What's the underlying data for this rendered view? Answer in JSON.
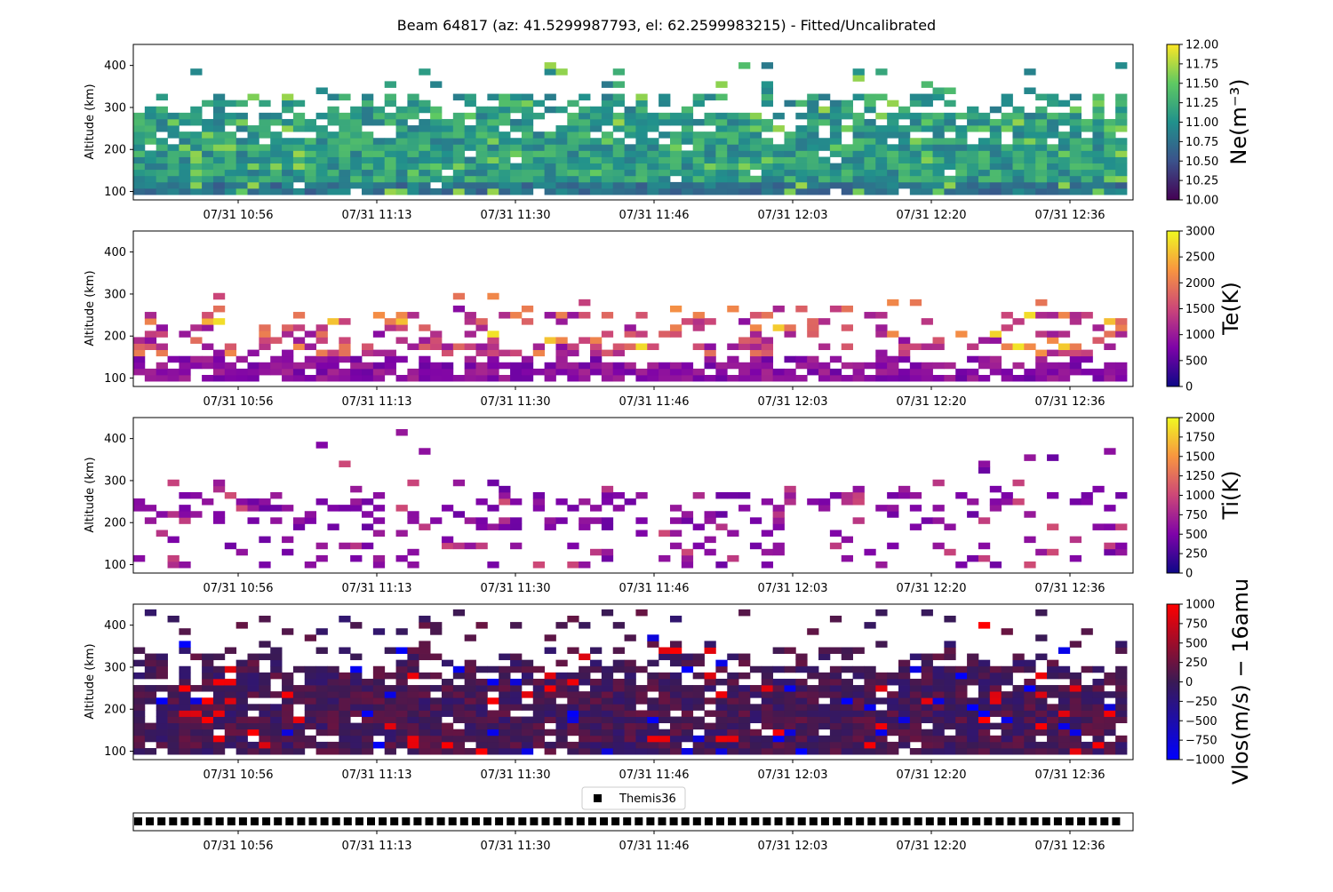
{
  "title": "Beam 64817 (az: 41.5299987793, el: 62.2599983215) - Fitted/Uncalibrated",
  "x_ticks": [
    "07/31 10:56",
    "07/31 11:13",
    "07/31 11:30",
    "07/31 11:46",
    "07/31 12:03",
    "07/31 12:20",
    "07/31 12:36"
  ],
  "chart_data": [
    {
      "type": "heatmap",
      "panel": "ne",
      "ylabel": "Altitude (km)",
      "yticks": [
        100,
        200,
        300,
        400
      ],
      "ylim": [
        80,
        450
      ],
      "cbar_label": "Ne(m⁻³)",
      "cbar_ticks": [
        "10.00",
        "10.25",
        "10.50",
        "10.75",
        "11.00",
        "11.25",
        "11.50",
        "11.75",
        "12.00"
      ],
      "cbar_range": [
        10.0,
        12.0
      ],
      "colormap": "viridis",
      "altitude_range_km": [
        100,
        450
      ],
      "note_values": "log10 electron density, dense from 100-330 km with sparse cells up to ~400 km"
    },
    {
      "type": "heatmap",
      "panel": "te",
      "ylabel": "Altitude (km)",
      "yticks": [
        100,
        200,
        300,
        400
      ],
      "ylim": [
        80,
        450
      ],
      "cbar_label": "Te(K)",
      "cbar_ticks": [
        "0",
        "500",
        "1000",
        "1500",
        "2000",
        "2500",
        "3000"
      ],
      "cbar_range": [
        0,
        3000
      ],
      "colormap": "plasma"
    },
    {
      "type": "heatmap",
      "panel": "ti",
      "ylabel": "Altitude (km)",
      "yticks": [
        100,
        200,
        300,
        400
      ],
      "ylim": [
        80,
        450
      ],
      "cbar_label": "Ti(K)",
      "cbar_ticks": [
        "0",
        "250",
        "500",
        "750",
        "1000",
        "1250",
        "1500",
        "1750",
        "2000"
      ],
      "cbar_range": [
        0,
        2000
      ],
      "colormap": "plasma"
    },
    {
      "type": "heatmap",
      "panel": "vlos",
      "ylabel": "Altitude (km)",
      "yticks": [
        100,
        200,
        300,
        400
      ],
      "ylim": [
        80,
        450
      ],
      "cbar_label": "Vlos(m/s) − 16amu",
      "cbar_ticks": [
        "1000",
        "750",
        "500",
        "250",
        "0",
        "−250",
        "−500",
        "−750",
        "−1000"
      ],
      "cbar_range": [
        -1000,
        1000
      ],
      "colormap": "bwr-dark"
    },
    {
      "type": "scatter",
      "panel": "themis",
      "legend": "Themis36",
      "marker": "square",
      "color": "#000000"
    }
  ]
}
